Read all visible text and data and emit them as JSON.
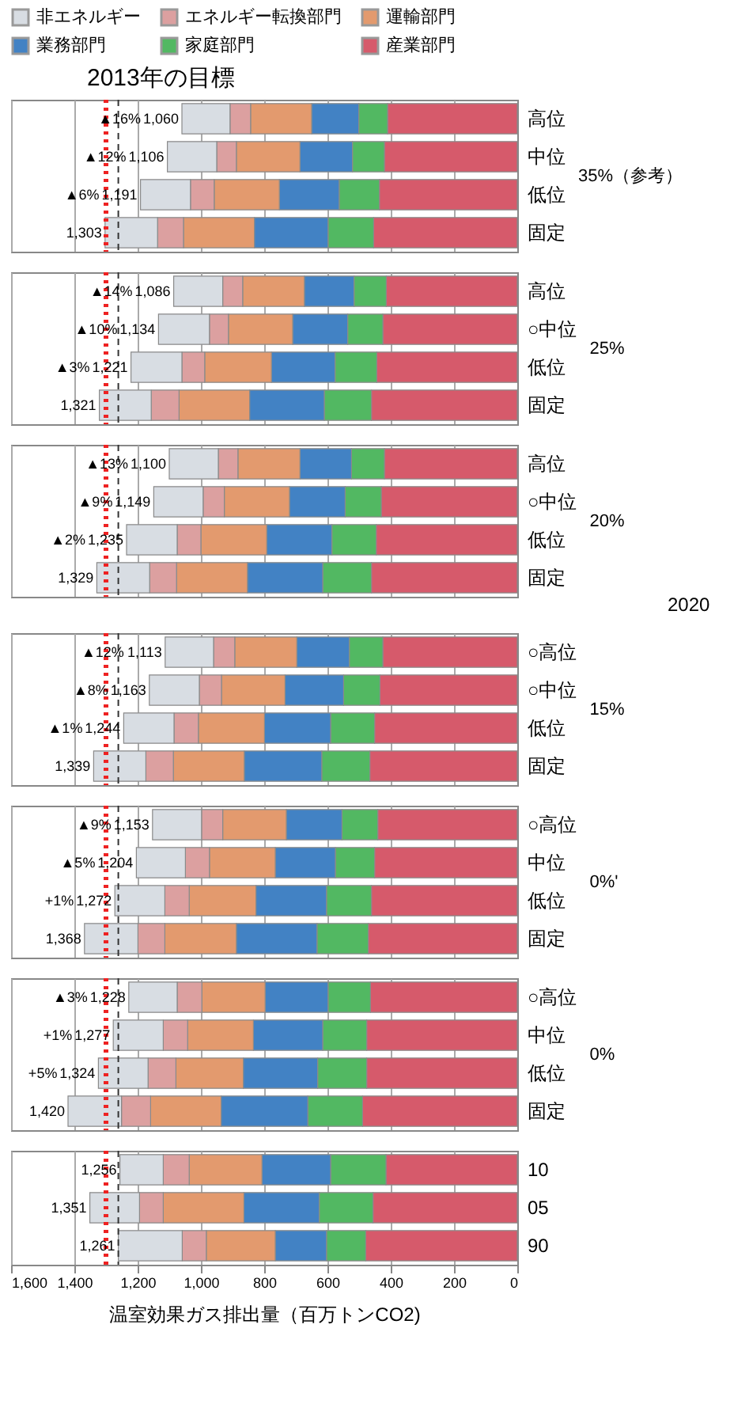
{
  "chart_data": [
    {
      "type": "bar",
      "orientation": "horizontal",
      "stacked": true,
      "ylabel": "35%（参考）",
      "categories": [
        "高位",
        "中位",
        "低位",
        "固定"
      ],
      "series": [
        {
          "name": "産業部門",
          "color": "#d65a6b",
          "values": [
            410,
            420,
            436,
            454
          ]
        },
        {
          "name": "家庭部門",
          "color": "#52b862",
          "values": [
            91,
            101,
            127,
            144
          ]
        },
        {
          "name": "業務部門",
          "color": "#4282c4",
          "values": [
            149,
            166,
            189,
            233
          ]
        },
        {
          "name": "運輸部門",
          "color": "#e39a6e",
          "values": [
            193,
            201,
            206,
            224
          ]
        },
        {
          "name": "エネルギー転換部門",
          "color": "#dca0a0",
          "values": [
            65,
            62,
            75,
            82
          ]
        },
        {
          "name": "非エネルギー",
          "color": "#d8dde3",
          "values": [
            152,
            156,
            158,
            166
          ]
        }
      ],
      "totals": [
        "1,060",
        "1,106",
        "1,191",
        "1,303"
      ],
      "xlim": [
        1600,
        0
      ],
      "xticks": [
        0,
        200,
        400,
        600,
        800,
        1000,
        1200,
        1400,
        1600
      ],
      "grid": "x",
      "legend": "top",
      "tick_labels": "y",
      "ref_lines": [
        {
          "axis": "x",
          "value": 1300,
          "color": "#ee2222",
          "line_style": "dotted",
          "label": "2013年の目標"
        },
        {
          "axis": "x",
          "value": 1261,
          "color": "#333333",
          "line_style": "dashed"
        }
      ],
      "annotations": [
        {
          "text": "▲16%",
          "x": 1060,
          "y": "高位"
        },
        {
          "text": "▲12%",
          "x": 1106,
          "y": "中位"
        },
        {
          "text": "▲6%",
          "x": 1191,
          "y": "低位"
        }
      ]
    },
    {
      "type": "bar",
      "orientation": "horizontal",
      "stacked": true,
      "ylabel": "25%",
      "categories": [
        "高位",
        "○中位",
        "低位",
        "固定"
      ],
      "series": [
        {
          "color": "#d65a6b",
          "values": [
            414,
            425,
            444,
            461
          ]
        },
        {
          "color": "#52b862",
          "values": [
            102,
            111,
            132,
            149
          ]
        },
        {
          "color": "#4282c4",
          "values": [
            157,
            174,
            201,
            236
          ]
        },
        {
          "color": "#e39a6e",
          "values": [
            195,
            203,
            211,
            223
          ]
        },
        {
          "color": "#dca0a0",
          "values": [
            63,
            60,
            72,
            88
          ]
        },
        {
          "color": "#d8dde3",
          "values": [
            155,
            161,
            161,
            164
          ]
        }
      ],
      "totals": [
        "1,086",
        "1,134",
        "1,221",
        "1,321"
      ],
      "xlim": [
        1600,
        0
      ],
      "xticks": [
        0,
        200,
        400,
        600,
        800,
        1000,
        1200,
        1400,
        1600
      ],
      "grid": "x",
      "tick_labels": "y",
      "ref_lines": [
        {
          "axis": "x",
          "value": 1300,
          "color": "#ee2222",
          "line_style": "dotted"
        },
        {
          "axis": "x",
          "value": 1261,
          "color": "#333333",
          "line_style": "dashed"
        }
      ],
      "annotations": [
        {
          "text": "▲14%",
          "x": 1086,
          "y": "高位"
        },
        {
          "text": "▲10%",
          "x": 1134,
          "y": "○中位"
        },
        {
          "text": "▲3%",
          "x": 1221,
          "y": "低位"
        }
      ]
    },
    {
      "type": "bar",
      "orientation": "horizontal",
      "stacked": true,
      "ylabel": "20%",
      "categories": [
        "高位",
        "○中位",
        "低位",
        "固定"
      ],
      "series": [
        {
          "color": "#d65a6b",
          "values": [
            420,
            430,
            446,
            461
          ]
        },
        {
          "color": "#52b862",
          "values": [
            104,
            114,
            140,
            154
          ]
        },
        {
          "color": "#4282c4",
          "values": [
            163,
            176,
            206,
            238
          ]
        },
        {
          "color": "#e39a6e",
          "values": [
            196,
            206,
            208,
            224
          ]
        },
        {
          "color": "#dca0a0",
          "values": [
            62,
            67,
            75,
            85
          ]
        },
        {
          "color": "#d8dde3",
          "values": [
            155,
            156,
            160,
            167
          ]
        }
      ],
      "totals": [
        "1,100",
        "1,149",
        "1,235",
        "1,329"
      ],
      "xlim": [
        1600,
        0
      ],
      "xticks": [
        0,
        200,
        400,
        600,
        800,
        1000,
        1200,
        1400,
        1600
      ],
      "grid": "x",
      "tick_labels": "y",
      "ref_lines": [
        {
          "axis": "x",
          "value": 1300,
          "color": "#ee2222",
          "line_style": "dotted"
        },
        {
          "axis": "x",
          "value": 1261,
          "color": "#333333",
          "line_style": "dashed"
        }
      ],
      "annotations": [
        {
          "text": "▲13%",
          "x": 1100,
          "y": "高位"
        },
        {
          "text": "▲9%",
          "x": 1149,
          "y": "○中位"
        },
        {
          "text": "▲2%",
          "x": 1235,
          "y": "低位"
        },
        "2020"
      ]
    },
    {
      "type": "bar",
      "orientation": "horizontal",
      "stacked": true,
      "ylabel": "15%",
      "categories": [
        "○高位",
        "○中位",
        "低位",
        "固定"
      ],
      "series": [
        {
          "color": "#d65a6b",
          "values": [
            425,
            434,
            451,
            466
          ]
        },
        {
          "color": "#52b862",
          "values": [
            106,
            115,
            139,
            152
          ]
        },
        {
          "color": "#4282c4",
          "values": [
            166,
            185,
            209,
            245
          ]
        },
        {
          "color": "#e39a6e",
          "values": [
            196,
            201,
            209,
            224
          ]
        },
        {
          "color": "#dca0a0",
          "values": [
            67,
            70,
            77,
            87
          ]
        },
        {
          "color": "#d8dde3",
          "values": [
            153,
            158,
            159,
            165
          ]
        }
      ],
      "totals": [
        "1,113",
        "1,163",
        "1,244",
        "1,339"
      ],
      "xlim": [
        1600,
        0
      ],
      "xticks": [
        0,
        200,
        400,
        600,
        800,
        1000,
        1200,
        1400,
        1600
      ],
      "grid": "x",
      "tick_labels": "y",
      "ref_lines": [
        {
          "axis": "x",
          "value": 1300,
          "color": "#ee2222",
          "line_style": "dotted"
        },
        {
          "axis": "x",
          "value": 1261,
          "color": "#333333",
          "line_style": "dashed"
        }
      ],
      "annotations": [
        {
          "text": "▲12%",
          "x": 1113,
          "y": "○高位"
        },
        {
          "text": "▲8%",
          "x": 1163,
          "y": "○中位"
        },
        {
          "text": "▲1%",
          "x": 1244,
          "y": "低位"
        }
      ]
    },
    {
      "type": "bar",
      "orientation": "horizontal",
      "stacked": true,
      "ylabel": "0%'",
      "categories": [
        "○高位",
        "中位",
        "低位",
        "固定"
      ],
      "series": [
        {
          "color": "#d65a6b",
          "values": [
            441,
            451,
            461,
            471
          ]
        },
        {
          "color": "#52b862",
          "values": [
            113,
            124,
            142,
            162
          ]
        },
        {
          "color": "#4282c4",
          "values": [
            176,
            190,
            223,
            255
          ]
        },
        {
          "color": "#e39a6e",
          "values": [
            201,
            208,
            211,
            226
          ]
        },
        {
          "color": "#dca0a0",
          "values": [
            67,
            76,
            77,
            85
          ]
        },
        {
          "color": "#d8dde3",
          "values": [
            155,
            155,
            158,
            169
          ]
        }
      ],
      "totals": [
        "1,153",
        "1,204",
        "1,272",
        "1,368"
      ],
      "xlim": [
        1600,
        0
      ],
      "xticks": [
        0,
        200,
        400,
        600,
        800,
        1000,
        1200,
        1400,
        1600
      ],
      "grid": "x",
      "tick_labels": "y",
      "ref_lines": [
        {
          "axis": "x",
          "value": 1300,
          "color": "#ee2222",
          "line_style": "dotted"
        },
        {
          "axis": "x",
          "value": 1261,
          "color": "#333333",
          "line_style": "dashed"
        }
      ],
      "annotations": [
        {
          "text": "▲9%",
          "x": 1153,
          "y": "○高位"
        },
        {
          "text": "▲5%",
          "x": 1204,
          "y": "中位"
        },
        {
          "text": "+1%",
          "x": 1272,
          "y": "低位"
        }
      ]
    },
    {
      "type": "bar",
      "orientation": "horizontal",
      "stacked": true,
      "ylabel": "0%",
      "categories": [
        "○高位",
        "中位",
        "低位",
        "固定"
      ],
      "series": [
        {
          "color": "#d65a6b",
          "values": [
            464,
            476,
            476,
            489
          ]
        },
        {
          "color": "#52b862",
          "values": [
            134,
            139,
            155,
            173
          ]
        },
        {
          "color": "#4282c4",
          "values": [
            199,
            219,
            235,
            274
          ]
        },
        {
          "color": "#e39a6e",
          "values": [
            200,
            208,
            213,
            223
          ]
        },
        {
          "color": "#dca0a0",
          "values": [
            78,
            77,
            88,
            92
          ]
        },
        {
          "color": "#d8dde3",
          "values": [
            153,
            158,
            157,
            169
          ]
        }
      ],
      "totals": [
        "1,228",
        "1,277",
        "1,324",
        "1,420"
      ],
      "xlim": [
        1600,
        0
      ],
      "xticks": [
        0,
        200,
        400,
        600,
        800,
        1000,
        1200,
        1400,
        1600
      ],
      "grid": "x",
      "tick_labels": "y",
      "ref_lines": [
        {
          "axis": "x",
          "value": 1300,
          "color": "#ee2222",
          "line_style": "dotted"
        },
        {
          "axis": "x",
          "value": 1261,
          "color": "#333333",
          "line_style": "dashed"
        }
      ],
      "annotations": [
        {
          "text": "▲3%",
          "x": 1228,
          "y": "○高位"
        },
        {
          "text": "+1%",
          "x": 1277,
          "y": "中位"
        },
        {
          "text": "+5%",
          "x": 1324,
          "y": "低位"
        }
      ]
    },
    {
      "type": "bar",
      "orientation": "horizontal",
      "stacked": true,
      "categories": [
        "10",
        "05",
        "90"
      ],
      "series": [
        {
          "color": "#d65a6b",
          "values": [
            415,
            456,
            479
          ]
        },
        {
          "color": "#52b862",
          "values": [
            175,
            170,
            124
          ]
        },
        {
          "color": "#4282c4",
          "values": [
            217,
            238,
            162
          ]
        },
        {
          "color": "#e39a6e",
          "values": [
            230,
            255,
            218
          ]
        },
        {
          "color": "#dca0a0",
          "values": [
            82,
            75,
            76
          ]
        },
        {
          "color": "#d8dde3",
          "values": [
            137,
            157,
            202
          ]
        }
      ],
      "totals": [
        "1,256",
        "1,351",
        "1,261"
      ],
      "xlim": [
        1600,
        0
      ],
      "xticks": [
        0,
        200,
        400,
        600,
        800,
        {
          "value": 1000,
          "label": "1,000"
        },
        {
          "value": 1200,
          "label": "1,200"
        },
        {
          "value": 1400,
          "label": "1,400"
        },
        {
          "value": 1600,
          "label": "1,600"
        }
      ],
      "grid": "x",
      "xlabel": "温室効果ガス排出量（百万トンCO2)",
      "ref_lines": [
        {
          "axis": "x",
          "value": 1300,
          "color": "#ee2222",
          "line_style": "dotted"
        },
        {
          "axis": "x",
          "value": 1261,
          "color": "#333333",
          "line_style": "dashed"
        }
      ]
    }
  ]
}
